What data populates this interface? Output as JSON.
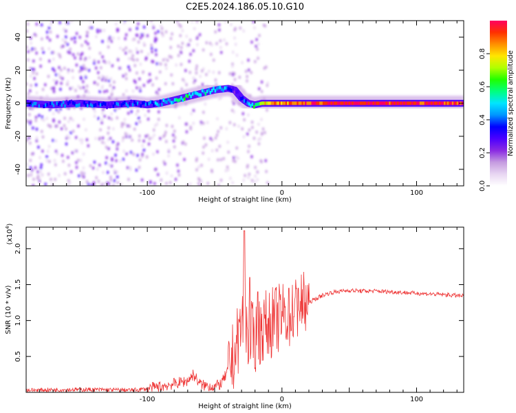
{
  "title": "C2E5.2024.186.05.10.G10",
  "chart_data": [
    {
      "type": "heatmap",
      "xlabel": "Height of straight line (km)",
      "ylabel": "Frequency (Hz)",
      "xlim": [
        -190,
        135
      ],
      "ylim": [
        -50,
        50
      ],
      "xticks": [
        -100,
        0,
        100
      ],
      "yticks": [
        -40,
        -20,
        0,
        20,
        40
      ],
      "colorbar": {
        "label": "Normalized spectral amplitude",
        "range": [
          0,
          1
        ],
        "ticks": [
          0.0,
          0.2,
          0.4,
          0.6,
          0.8
        ],
        "tick_labels": [
          "0.0",
          "0.2",
          "0.4",
          "0.6",
          "0.8"
        ],
        "colormap": [
          "#ffffff",
          "#e8d6f2",
          "#c59be0",
          "#8a2be2",
          "#4b00ff",
          "#0000ff",
          "#0096ff",
          "#00e5ff",
          "#00ff80",
          "#20ff00",
          "#b0ff00",
          "#ffe600",
          "#ff9000",
          "#ff3000",
          "#ff0060"
        ]
      },
      "ridge": {
        "x": [
          -190,
          -170,
          -150,
          -130,
          -110,
          -100,
          -90,
          -80,
          -70,
          -60,
          -50,
          -40,
          -35,
          -30,
          -25,
          -20,
          -15,
          -10,
          0,
          10,
          20,
          40,
          60,
          80,
          100,
          120,
          135
        ],
        "y": [
          0,
          -1,
          0,
          -1,
          0,
          -1,
          0,
          2,
          4,
          6,
          8,
          9,
          8,
          3,
          0,
          -1,
          0,
          0,
          0,
          0,
          0,
          0,
          0,
          0,
          0,
          0,
          0
        ],
        "amplitude": [
          0.35,
          0.35,
          0.38,
          0.35,
          0.36,
          0.4,
          0.45,
          0.5,
          0.55,
          0.5,
          0.45,
          0.45,
          0.3,
          0.35,
          0.45,
          0.6,
          0.7,
          0.8,
          0.85,
          0.9,
          0.92,
          0.95,
          0.95,
          0.95,
          0.95,
          0.95,
          0.95
        ]
      }
    },
    {
      "type": "line",
      "xlabel": "Height of straight line (km)",
      "ylabel": "SNR (10 * v/v)",
      "multiplier_label": "(x10",
      "multiplier_exp": "4",
      "xlim": [
        -190,
        135
      ],
      "ylim": [
        0,
        2.3
      ],
      "xticks": [
        -100,
        0,
        100
      ],
      "yticks": [
        0.5,
        1.0,
        1.5,
        2.0
      ],
      "ytick_labels": [
        "0.5",
        "1.0",
        "1.5",
        "2.0"
      ],
      "color": "#ee3333",
      "envelope": {
        "x": [
          -190,
          -150,
          -110,
          -100,
          -90,
          -80,
          -70,
          -66,
          -60,
          -50,
          -45,
          -40,
          -35,
          -30,
          -28,
          -25,
          -20,
          -15,
          -10,
          -5,
          0,
          5,
          10,
          15,
          20,
          25,
          30,
          35,
          40,
          50,
          60,
          70,
          80,
          90,
          100,
          110,
          120,
          135
        ],
        "y": [
          0.03,
          0.04,
          0.03,
          0.05,
          0.08,
          0.12,
          0.16,
          0.25,
          0.1,
          0.08,
          0.12,
          0.3,
          0.55,
          0.95,
          1.15,
          0.8,
          0.75,
          0.9,
          0.95,
          1.0,
          1.05,
          1.1,
          1.15,
          1.2,
          1.25,
          1.3,
          1.35,
          1.38,
          1.4,
          1.42,
          1.41,
          1.41,
          1.4,
          1.39,
          1.38,
          1.37,
          1.36,
          1.34
        ]
      },
      "peaks": [
        {
          "x": -28,
          "y": 2.25
        },
        {
          "x": -24,
          "y": 1.6
        },
        {
          "x": -18,
          "y": 1.4
        },
        {
          "x": 5,
          "y": 1.45
        },
        {
          "x": 12,
          "y": 1.45
        }
      ]
    }
  ]
}
